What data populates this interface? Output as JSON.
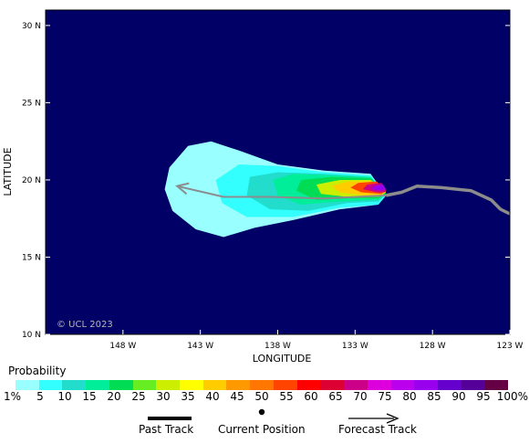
{
  "copyright": "© UCL 2023",
  "axes": {
    "xlabel": "LONGITUDE",
    "ylabel": "LATITUDE",
    "lon_range": [
      -153,
      -123
    ],
    "lat_range": [
      10,
      31
    ],
    "x_ticks": [
      {
        "value": -148,
        "label": "148 W"
      },
      {
        "value": -143,
        "label": "143 W"
      },
      {
        "value": -138,
        "label": "138 W"
      },
      {
        "value": -133,
        "label": "133 W"
      },
      {
        "value": -128,
        "label": "128 W"
      },
      {
        "value": -123,
        "label": "123 W"
      }
    ],
    "y_ticks": [
      {
        "value": 30,
        "label": "30 N"
      },
      {
        "value": 25,
        "label": "25 N"
      },
      {
        "value": 20,
        "label": "20 N"
      },
      {
        "value": 15,
        "label": "15 N"
      },
      {
        "value": 10,
        "label": "10 N"
      }
    ]
  },
  "colors": {
    "background": "#000066",
    "track": "#8c8c8c",
    "bands": [
      "#99ffff",
      "#33ffff",
      "#22ddcc",
      "#00ee99",
      "#00dd55",
      "#66ee22",
      "#ccee00",
      "#ffff00",
      "#ffcc00",
      "#ff9900",
      "#ff7700",
      "#ff4400",
      "#ff0000",
      "#dd0033",
      "#cc0088",
      "#dd00dd",
      "#bb00ee",
      "#9900ee",
      "#6600cc",
      "#550099",
      "#660044"
    ]
  },
  "legend": {
    "title": "Probability",
    "labels": [
      "1%",
      "5",
      "10",
      "15",
      "20",
      "25",
      "30",
      "35",
      "40",
      "45",
      "50",
      "55",
      "60",
      "65",
      "70",
      "75",
      "80",
      "85",
      "90",
      "95",
      "100%"
    ]
  },
  "key": {
    "past_track": "Past Track",
    "current_position": "Current Position",
    "forecast_track": "Forecast Track"
  },
  "track": {
    "past": [
      {
        "lon": -123,
        "lat": 17.8
      },
      {
        "lon": -123.6,
        "lat": 18.1
      },
      {
        "lon": -124.2,
        "lat": 18.7
      },
      {
        "lon": -125.5,
        "lat": 19.3
      },
      {
        "lon": -127.4,
        "lat": 19.5
      },
      {
        "lon": -129.0,
        "lat": 19.6
      },
      {
        "lon": -130.0,
        "lat": 19.2
      },
      {
        "lon": -131.0,
        "lat": 19.0
      }
    ],
    "forecast": [
      {
        "lon": -131.0,
        "lat": 19.0
      },
      {
        "lon": -135.0,
        "lat": 18.8
      },
      {
        "lon": -138.5,
        "lat": 18.9
      },
      {
        "lon": -141.5,
        "lat": 18.9
      },
      {
        "lon": -144.5,
        "lat": 19.6
      }
    ]
  },
  "probability_swath": [
    {
      "level": 1,
      "polygon": [
        [
          -131.0,
          19.0
        ],
        [
          -132.0,
          20.4
        ],
        [
          -135.0,
          20.6
        ],
        [
          -138.0,
          21.0
        ],
        [
          -140.5,
          21.9
        ],
        [
          -142.3,
          22.5
        ],
        [
          -143.8,
          22.2
        ],
        [
          -145.0,
          20.8
        ],
        [
          -145.3,
          19.4
        ],
        [
          -144.8,
          18.0
        ],
        [
          -143.3,
          16.8
        ],
        [
          -141.5,
          16.3
        ],
        [
          -139.5,
          16.9
        ],
        [
          -137.0,
          17.4
        ],
        [
          -134.0,
          18.1
        ],
        [
          -131.5,
          18.4
        ]
      ]
    },
    {
      "level": 5,
      "polygon": [
        [
          -131.0,
          19.0
        ],
        [
          -132.0,
          20.3
        ],
        [
          -135.0,
          20.5
        ],
        [
          -138.0,
          20.9
        ],
        [
          -140.5,
          21.0
        ],
        [
          -142.0,
          20.0
        ],
        [
          -141.6,
          18.5
        ],
        [
          -140.0,
          17.6
        ],
        [
          -137.0,
          17.6
        ],
        [
          -134.0,
          18.2
        ],
        [
          -131.5,
          18.4
        ]
      ]
    },
    {
      "level": 10,
      "polygon": [
        [
          -131.0,
          19.1
        ],
        [
          -132.0,
          20.2
        ],
        [
          -135.0,
          20.4
        ],
        [
          -138.0,
          20.5
        ],
        [
          -139.8,
          20.2
        ],
        [
          -140.0,
          19.0
        ],
        [
          -138.5,
          18.1
        ],
        [
          -136.0,
          18.0
        ],
        [
          -133.5,
          18.5
        ],
        [
          -131.5,
          18.6
        ]
      ]
    },
    {
      "level": 15,
      "polygon": [
        [
          -131.0,
          19.1
        ],
        [
          -132.0,
          20.2
        ],
        [
          -134.5,
          20.3
        ],
        [
          -137.0,
          20.4
        ],
        [
          -138.3,
          20.0
        ],
        [
          -138.0,
          19.0
        ],
        [
          -136.5,
          18.4
        ],
        [
          -134.0,
          18.6
        ],
        [
          -131.5,
          18.7
        ]
      ]
    },
    {
      "level": 20,
      "polygon": [
        [
          -131.0,
          19.1
        ],
        [
          -132.0,
          20.1
        ],
        [
          -134.5,
          20.2
        ],
        [
          -136.5,
          20.0
        ],
        [
          -136.8,
          19.3
        ],
        [
          -135.5,
          18.7
        ],
        [
          -133.5,
          18.8
        ],
        [
          -131.5,
          18.8
        ]
      ]
    },
    {
      "level": 30,
      "polygon": [
        [
          -131.0,
          19.2
        ],
        [
          -132.0,
          20.0
        ],
        [
          -134.0,
          20.0
        ],
        [
          -135.5,
          19.7
        ],
        [
          -135.2,
          19.1
        ],
        [
          -133.5,
          18.9
        ],
        [
          -131.5,
          18.9
        ]
      ]
    },
    {
      "level": 40,
      "polygon": [
        [
          -131.0,
          19.2
        ],
        [
          -131.8,
          19.9
        ],
        [
          -133.5,
          19.9
        ],
        [
          -134.5,
          19.6
        ],
        [
          -134.0,
          19.2
        ],
        [
          -132.5,
          19.0
        ],
        [
          -131.3,
          19.0
        ]
      ]
    },
    {
      "level": 55,
      "polygon": [
        [
          -131.0,
          19.3
        ],
        [
          -131.6,
          19.9
        ],
        [
          -132.8,
          19.8
        ],
        [
          -133.3,
          19.5
        ],
        [
          -132.6,
          19.2
        ],
        [
          -131.3,
          19.1
        ]
      ]
    },
    {
      "level": 70,
      "polygon": [
        [
          -131.0,
          19.3
        ],
        [
          -131.3,
          19.8
        ],
        [
          -132.2,
          19.7
        ],
        [
          -132.5,
          19.4
        ],
        [
          -131.6,
          19.2
        ],
        [
          -131.1,
          19.2
        ]
      ]
    },
    {
      "level": 85,
      "polygon": [
        [
          -131.0,
          19.4
        ],
        [
          -131.2,
          19.7
        ],
        [
          -131.8,
          19.6
        ],
        [
          -131.9,
          19.4
        ],
        [
          -131.4,
          19.3
        ]
      ]
    }
  ]
}
